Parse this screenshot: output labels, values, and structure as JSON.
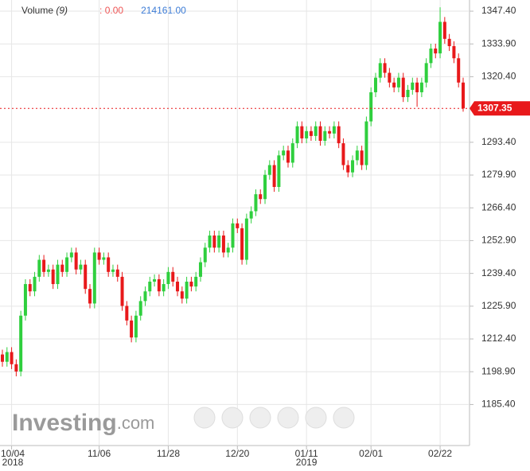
{
  "chart_data": {
    "type": "candlestick",
    "indicator": {
      "name": "Volume",
      "period": "(9)",
      "value_a": ": 0.00",
      "value_b": "214161.00"
    },
    "watermark": "Investing",
    "watermark_suffix": ".com",
    "current_price": 1307.35,
    "up_color": "#2fcf3e",
    "down_color": "#e8191b",
    "grid": true,
    "ylim": [
      1168.5,
      1352.0
    ],
    "yticks": [
      {
        "value": 1185.4,
        "label": "1185.40"
      },
      {
        "value": 1198.9,
        "label": "1198.90"
      },
      {
        "value": 1212.4,
        "label": "1212.40"
      },
      {
        "value": 1225.9,
        "label": "1225.90"
      },
      {
        "value": 1239.4,
        "label": "1239.40"
      },
      {
        "value": 1252.9,
        "label": "1252.90"
      },
      {
        "value": 1266.4,
        "label": "1266.40"
      },
      {
        "value": 1279.9,
        "label": "1279.90"
      },
      {
        "value": 1293.4,
        "label": "1293.40"
      },
      {
        "value": 1320.4,
        "label": "1320.40"
      },
      {
        "value": 1333.9,
        "label": "1333.90"
      },
      {
        "value": 1347.4,
        "label": "1347.40"
      }
    ],
    "xlabels": [
      {
        "index": 2,
        "label": "10/04",
        "year": "2018"
      },
      {
        "index": 21,
        "label": "11/06"
      },
      {
        "index": 36,
        "label": "11/28"
      },
      {
        "index": 51,
        "label": "12/20"
      },
      {
        "index": 66,
        "label": "01/11",
        "year": "2019"
      },
      {
        "index": 80,
        "label": "02/01"
      },
      {
        "index": 95,
        "label": "02/22"
      }
    ],
    "ohlc": [
      [
        1206,
        1208,
        1201,
        1203
      ],
      [
        1203,
        1209,
        1201,
        1207
      ],
      [
        1207,
        1209,
        1200,
        1202
      ],
      [
        1202,
        1204,
        1197,
        1199
      ],
      [
        1199,
        1224,
        1197,
        1222
      ],
      [
        1222,
        1237,
        1220,
        1235
      ],
      [
        1235,
        1237,
        1230,
        1232
      ],
      [
        1232,
        1240,
        1230,
        1238
      ],
      [
        1238,
        1247,
        1236,
        1245
      ],
      [
        1245,
        1247,
        1238,
        1240
      ],
      [
        1240,
        1243,
        1238,
        1241
      ],
      [
        1241,
        1243,
        1233,
        1235
      ],
      [
        1235,
        1245,
        1233,
        1243
      ],
      [
        1243,
        1245,
        1238,
        1240
      ],
      [
        1240,
        1248,
        1238,
        1246
      ],
      [
        1246,
        1250,
        1244,
        1248
      ],
      [
        1248,
        1250,
        1239,
        1241
      ],
      [
        1241,
        1245,
        1239,
        1243
      ],
      [
        1243,
        1245,
        1231,
        1233
      ],
      [
        1233,
        1235,
        1225,
        1227
      ],
      [
        1227,
        1250,
        1225,
        1248
      ],
      [
        1248,
        1250,
        1243,
        1245
      ],
      [
        1245,
        1248,
        1243,
        1246
      ],
      [
        1246,
        1248,
        1238,
        1240
      ],
      [
        1240,
        1243,
        1238,
        1241
      ],
      [
        1241,
        1243,
        1236,
        1238
      ],
      [
        1238,
        1240,
        1224,
        1226
      ],
      [
        1226,
        1228,
        1218,
        1220
      ],
      [
        1220,
        1222,
        1211,
        1213
      ],
      [
        1213,
        1224,
        1211,
        1222
      ],
      [
        1222,
        1230,
        1220,
        1228
      ],
      [
        1228,
        1234,
        1226,
        1232
      ],
      [
        1232,
        1238,
        1230,
        1236
      ],
      [
        1236,
        1239,
        1234,
        1237
      ],
      [
        1237,
        1239,
        1230,
        1232
      ],
      [
        1232,
        1237,
        1230,
        1235
      ],
      [
        1235,
        1242,
        1233,
        1240
      ],
      [
        1240,
        1242,
        1234,
        1236
      ],
      [
        1236,
        1238,
        1230,
        1232
      ],
      [
        1232,
        1234,
        1227,
        1229
      ],
      [
        1229,
        1238,
        1227,
        1236
      ],
      [
        1236,
        1238,
        1232,
        1234
      ],
      [
        1234,
        1240,
        1232,
        1238
      ],
      [
        1238,
        1246,
        1236,
        1244
      ],
      [
        1244,
        1252,
        1242,
        1250
      ],
      [
        1250,
        1257,
        1248,
        1255
      ],
      [
        1255,
        1257,
        1248,
        1250
      ],
      [
        1250,
        1257,
        1248,
        1255
      ],
      [
        1255,
        1257,
        1246,
        1248
      ],
      [
        1248,
        1252,
        1246,
        1250
      ],
      [
        1250,
        1262,
        1248,
        1260
      ],
      [
        1260,
        1262,
        1256,
        1258
      ],
      [
        1258,
        1260,
        1243,
        1245
      ],
      [
        1245,
        1264,
        1243,
        1262
      ],
      [
        1262,
        1267,
        1260,
        1265
      ],
      [
        1265,
        1274,
        1263,
        1272
      ],
      [
        1272,
        1274,
        1268,
        1270
      ],
      [
        1270,
        1282,
        1268,
        1280
      ],
      [
        1280,
        1286,
        1278,
        1284
      ],
      [
        1284,
        1286,
        1273,
        1275
      ],
      [
        1275,
        1290,
        1273,
        1288
      ],
      [
        1288,
        1292,
        1286,
        1290
      ],
      [
        1290,
        1292,
        1283,
        1285
      ],
      [
        1285,
        1295,
        1283,
        1293
      ],
      [
        1293,
        1302,
        1291,
        1300
      ],
      [
        1300,
        1302,
        1293,
        1295
      ],
      [
        1295,
        1300,
        1293,
        1298
      ],
      [
        1298,
        1300,
        1294,
        1296
      ],
      [
        1296,
        1302,
        1294,
        1300
      ],
      [
        1300,
        1302,
        1292,
        1294
      ],
      [
        1294,
        1300,
        1292,
        1298
      ],
      [
        1298,
        1300,
        1295,
        1297
      ],
      [
        1297,
        1302,
        1295,
        1300
      ],
      [
        1300,
        1302,
        1291,
        1293
      ],
      [
        1293,
        1295,
        1282,
        1284
      ],
      [
        1284,
        1286,
        1279,
        1281
      ],
      [
        1281,
        1288,
        1279,
        1286
      ],
      [
        1286,
        1292,
        1284,
        1290
      ],
      [
        1290,
        1292,
        1282,
        1284
      ],
      [
        1284,
        1304,
        1282,
        1302
      ],
      [
        1302,
        1316,
        1300,
        1314
      ],
      [
        1314,
        1322,
        1312,
        1320
      ],
      [
        1320,
        1328,
        1318,
        1326
      ],
      [
        1326,
        1328,
        1320,
        1322
      ],
      [
        1322,
        1324,
        1316,
        1318
      ],
      [
        1318,
        1320,
        1314,
        1316
      ],
      [
        1316,
        1322,
        1314,
        1320
      ],
      [
        1320,
        1322,
        1310,
        1312
      ],
      [
        1312,
        1317,
        1310,
        1315
      ],
      [
        1315,
        1320,
        1313,
        1318
      ],
      [
        1318,
        1320,
        1308,
        1314
      ],
      [
        1314,
        1320,
        1312,
        1318
      ],
      [
        1318,
        1328,
        1316,
        1326
      ],
      [
        1326,
        1334,
        1324,
        1332
      ],
      [
        1332,
        1334,
        1328,
        1330
      ],
      [
        1330,
        1349,
        1328,
        1343
      ],
      [
        1343,
        1345,
        1334,
        1336
      ],
      [
        1336,
        1338,
        1331,
        1333
      ],
      [
        1333,
        1335,
        1326,
        1328
      ],
      [
        1328,
        1330,
        1316,
        1318
      ],
      [
        1318,
        1320,
        1306,
        1307.35
      ]
    ]
  }
}
